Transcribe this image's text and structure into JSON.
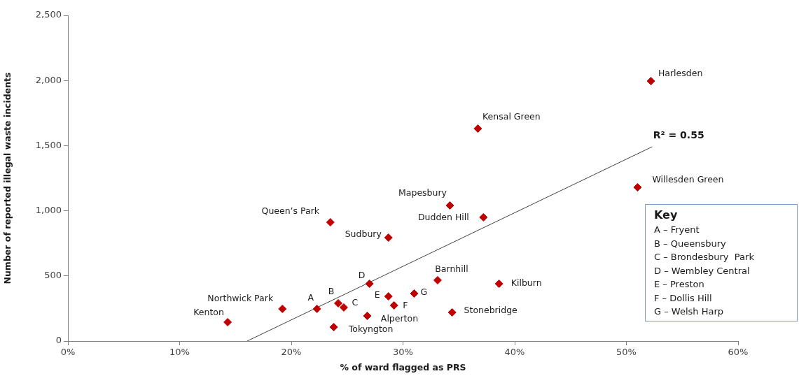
{
  "chart_data": {
    "type": "scatter",
    "xlabel": "% of ward flagged as PRS",
    "ylabel": "Number of reported illegal waste incidents",
    "xlim": [
      0,
      60
    ],
    "xticks": [
      {
        "value": 0,
        "label": "0%"
      },
      {
        "value": 10,
        "label": "10%"
      },
      {
        "value": 20,
        "label": "20%"
      },
      {
        "value": 30,
        "label": "30%"
      },
      {
        "value": 40,
        "label": "40%"
      },
      {
        "value": 50,
        "label": "50%"
      },
      {
        "value": 60,
        "label": "60%"
      }
    ],
    "ylim": [
      0,
      2500
    ],
    "yticks": [
      0,
      500,
      {
        "value": 1000,
        "label": "1,000"
      },
      {
        "value": 1500,
        "label": "1,500"
      },
      {
        "value": 2000,
        "label": "2,000"
      },
      {
        "value": 2500,
        "label": "2,500"
      }
    ],
    "grid": false,
    "legend": false,
    "marker": "diamond",
    "series": [
      {
        "color": "#c00000",
        "x": [
          14.3,
          19.2,
          22.3,
          24.2,
          24.7,
          23.8,
          27.0,
          26.8,
          28.7,
          29.2,
          31.0,
          33.1,
          34.4,
          38.6,
          23.5,
          28.7,
          34.2,
          37.2,
          36.7,
          52.2,
          51.0
        ],
        "values": [
          145,
          247,
          247,
          290,
          258,
          107,
          440,
          193,
          343,
          274,
          365,
          467,
          220,
          440,
          912,
          794,
          1041,
          950,
          1631,
          1996,
          1180
        ]
      },
      {
        "type": "line",
        "color": "#404040",
        "marker": "none",
        "line_style": "solid",
        "x": [
          16.05,
          52.3
        ],
        "values": [
          0,
          1491
        ]
      }
    ],
    "annotations": [
      {
        "text": "Kenton",
        "x": 14.3,
        "y": 145
      },
      {
        "text": "Northwick Park",
        "x": 19.2,
        "y": 247
      },
      {
        "text": "A",
        "x": 22.3,
        "y": 247
      },
      {
        "text": "B",
        "x": 24.2,
        "y": 290
      },
      {
        "text": "C",
        "x": 24.7,
        "y": 258
      },
      {
        "text": "Tokyngton",
        "x": 23.8,
        "y": 107
      },
      {
        "text": "D",
        "x": 27.0,
        "y": 440
      },
      {
        "text": "Alperton",
        "x": 26.8,
        "y": 193
      },
      {
        "text": "E",
        "x": 28.7,
        "y": 343
      },
      {
        "text": "F",
        "x": 29.2,
        "y": 274
      },
      {
        "text": "G",
        "x": 31.0,
        "y": 365
      },
      {
        "text": "Barnhill",
        "x": 33.1,
        "y": 467
      },
      {
        "text": "Stonebridge",
        "x": 34.4,
        "y": 220
      },
      {
        "text": "Kilburn",
        "x": 38.6,
        "y": 440
      },
      {
        "text": "Queen’s Park",
        "x": 23.5,
        "y": 912
      },
      {
        "text": "Sudbury",
        "x": 28.7,
        "y": 794
      },
      {
        "text": "Mapesbury",
        "x": 34.2,
        "y": 1041
      },
      {
        "text": "Dudden Hill",
        "x": 37.2,
        "y": 950
      },
      {
        "text": "Kensal Green",
        "x": 36.7,
        "y": 1631
      },
      {
        "text": "Harlesden",
        "x": 52.2,
        "y": 1996
      },
      {
        "text": "Willesden Green",
        "x": 51.0,
        "y": 1180
      },
      {
        "text": "R² = 0.55",
        "x": 52.3,
        "y": 1491
      },
      "Key",
      "A – Fryent",
      "B – Queensbury",
      "C – Brondesbury  Park",
      "D – Wembley Central",
      "E – Preston",
      "F – Dollis Hill",
      "G – Welsh Harp"
    ]
  }
}
